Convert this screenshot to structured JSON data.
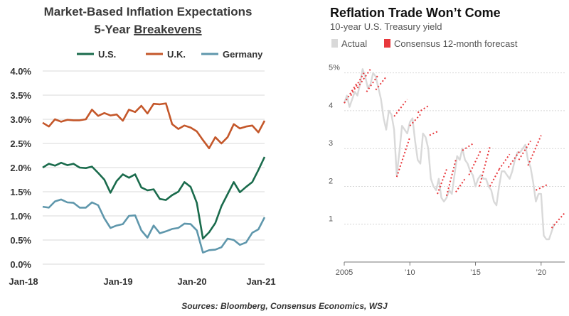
{
  "footer": {
    "source": "Sources: Bloomberg, Consensus Economics, WSJ"
  },
  "chart_data": [
    {
      "type": "line",
      "title": "Market-Based Inflation Expectations",
      "subtitle_prefix": "5-Year ",
      "subtitle_underlined": "Breakevens",
      "xlabel": "",
      "ylabel": "",
      "x_ticks": [
        "Jan-18",
        "Jan-19",
        "Jan-20",
        "Jan-21"
      ],
      "y_ticks": [
        "0.0%",
        "0.5%",
        "1.0%",
        "1.5%",
        "2.0%",
        "2.5%",
        "3.0%",
        "3.5%",
        "4.0%"
      ],
      "ylim": [
        0,
        4
      ],
      "xlim": [
        0,
        36
      ],
      "grid": true,
      "legend_position": "top",
      "series": [
        {
          "name": "U.S.",
          "color": "#1a6b4c",
          "values": [
            2.0,
            2.08,
            2.04,
            2.1,
            2.05,
            2.08,
            2.0,
            1.99,
            2.02,
            1.89,
            1.75,
            1.48,
            1.72,
            1.86,
            1.79,
            1.86,
            1.59,
            1.53,
            1.55,
            1.35,
            1.33,
            1.43,
            1.5,
            1.7,
            1.6,
            1.27,
            0.53,
            0.66,
            0.85,
            1.2,
            1.45,
            1.7,
            1.49,
            1.6,
            1.7,
            1.95,
            2.22
          ]
        },
        {
          "name": "U.K.",
          "color": "#c4572a",
          "values": [
            2.93,
            2.85,
            3.0,
            2.95,
            2.99,
            2.98,
            2.98,
            3.0,
            3.2,
            3.07,
            3.13,
            3.08,
            3.1,
            2.97,
            3.2,
            3.15,
            3.28,
            3.12,
            3.32,
            3.31,
            3.33,
            2.9,
            2.8,
            2.87,
            2.83,
            2.75,
            2.57,
            2.4,
            2.63,
            2.5,
            2.63,
            2.9,
            2.81,
            2.85,
            2.87,
            2.73,
            2.97
          ]
        },
        {
          "name": "Germany",
          "color": "#5f97ac",
          "values": [
            1.19,
            1.17,
            1.3,
            1.34,
            1.28,
            1.27,
            1.17,
            1.17,
            1.28,
            1.22,
            0.95,
            0.75,
            0.8,
            0.83,
            1.0,
            1.01,
            0.7,
            0.55,
            0.8,
            0.64,
            0.68,
            0.73,
            0.75,
            0.84,
            0.83,
            0.7,
            0.24,
            0.29,
            0.3,
            0.35,
            0.53,
            0.5,
            0.4,
            0.45,
            0.65,
            0.72,
            0.97
          ]
        }
      ]
    },
    {
      "type": "line",
      "title": "Reflation Trade Won’t Come",
      "subtitle": "10-year U.S. Treasury yield",
      "xlabel": "",
      "ylabel": "",
      "x_ticks": [
        "2005",
        "’10",
        "’15",
        "’20"
      ],
      "x_tick_values": [
        2005,
        2010,
        2015,
        2020
      ],
      "y_ticks": [
        "1",
        "2",
        "3",
        "4",
        "5%"
      ],
      "y_tick_values": [
        1,
        2,
        3,
        4,
        5
      ],
      "ylim": [
        0,
        5.2
      ],
      "xlim": [
        2005,
        2021.8
      ],
      "grid": true,
      "legend_position": "top-left",
      "series": [
        {
          "name": "Actual",
          "color": "#d9d9d9",
          "x": [
            2005,
            2005.2,
            2005.4,
            2005.6,
            2005.8,
            2006,
            2006.2,
            2006.4,
            2006.6,
            2006.8,
            2007,
            2007.2,
            2007.4,
            2007.6,
            2007.8,
            2008,
            2008.2,
            2008.4,
            2008.6,
            2008.8,
            2009,
            2009.2,
            2009.4,
            2009.6,
            2009.8,
            2010,
            2010.2,
            2010.4,
            2010.6,
            2010.8,
            2011,
            2011.2,
            2011.4,
            2011.6,
            2011.8,
            2012,
            2012.2,
            2012.4,
            2012.6,
            2012.8,
            2013,
            2013.2,
            2013.4,
            2013.6,
            2013.8,
            2014,
            2014.2,
            2014.4,
            2014.6,
            2014.8,
            2015,
            2015.2,
            2015.4,
            2015.6,
            2015.8,
            2016,
            2016.2,
            2016.4,
            2016.6,
            2016.8,
            2017,
            2017.2,
            2017.4,
            2017.6,
            2017.8,
            2018,
            2018.2,
            2018.4,
            2018.6,
            2018.8,
            2019,
            2019.2,
            2019.4,
            2019.6,
            2019.8,
            2020,
            2020.2,
            2020.4,
            2020.6,
            2020.8,
            2021
          ],
          "values": [
            4.2,
            4.4,
            4.1,
            4.3,
            4.5,
            4.4,
            4.7,
            5.1,
            4.9,
            4.6,
            4.7,
            5.0,
            4.9,
            4.6,
            4.3,
            3.8,
            3.5,
            4.0,
            3.9,
            3.5,
            2.3,
            2.9,
            3.6,
            3.5,
            3.4,
            3.7,
            3.8,
            3.2,
            2.7,
            2.6,
            3.4,
            3.3,
            3.0,
            2.2,
            2.0,
            1.9,
            2.2,
            1.7,
            1.6,
            1.7,
            1.9,
            1.8,
            2.3,
            2.8,
            2.7,
            3.0,
            2.7,
            2.6,
            2.4,
            2.3,
            2.0,
            2.2,
            2.3,
            2.2,
            2.2,
            2.0,
            1.9,
            1.6,
            1.5,
            2.0,
            2.4,
            2.4,
            2.3,
            2.2,
            2.4,
            2.7,
            2.9,
            2.9,
            3.0,
            3.1,
            2.7,
            2.5,
            2.1,
            1.6,
            1.8,
            1.8,
            0.7,
            0.6,
            0.6,
            0.8,
            1.0
          ]
        },
        {
          "name": "Consensus 12-month forecast",
          "color": "#e8383c",
          "segments": [
            {
              "x": [
                2005,
                2006
              ],
              "values": [
                4.2,
                4.75
              ]
            },
            {
              "x": [
                2005.5,
                2006.5
              ],
              "values": [
                4.4,
                5.0
              ]
            },
            {
              "x": [
                2006,
                2007
              ],
              "values": [
                4.6,
                5.1
              ]
            },
            {
              "x": [
                2006.7,
                2007.6
              ],
              "values": [
                4.5,
                4.95
              ]
            },
            {
              "x": [
                2007.4,
                2008.2
              ],
              "values": [
                4.55,
                4.9
              ]
            },
            {
              "x": [
                2008.8,
                2009.8
              ],
              "values": [
                3.85,
                4.3
              ]
            },
            {
              "x": [
                2009,
                2010
              ],
              "values": [
                2.25,
                3.3
              ]
            },
            {
              "x": [
                2010,
                2010.8
              ],
              "values": [
                3.6,
                3.9
              ]
            },
            {
              "x": [
                2010.6,
                2011.5
              ],
              "values": [
                3.95,
                4.15
              ]
            },
            {
              "x": [
                2011.5,
                2012.1
              ],
              "values": [
                3.35,
                3.45
              ]
            },
            {
              "x": [
                2012.1,
                2012.8
              ],
              "values": [
                1.8,
                2.45
              ]
            },
            {
              "x": [
                2012.8,
                2013.5
              ],
              "values": [
                1.75,
                2.7
              ]
            },
            {
              "x": [
                2013.5,
                2014.2
              ],
              "values": [
                1.85,
                2.2
              ]
            },
            {
              "x": [
                2014,
                2014.9
              ],
              "values": [
                2.95,
                3.15
              ]
            },
            {
              "x": [
                2014.5,
                2015.4
              ],
              "values": [
                2.3,
                2.95
              ]
            },
            {
              "x": [
                2015.3,
                2016.1
              ],
              "values": [
                2.0,
                3.05
              ]
            },
            {
              "x": [
                2016.1,
                2016.8
              ],
              "values": [
                2.0,
                2.45
              ]
            },
            {
              "x": [
                2016.8,
                2017.6
              ],
              "values": [
                2.45,
                2.85
              ]
            },
            {
              "x": [
                2017.5,
                2018.4
              ],
              "values": [
                2.5,
                2.95
              ]
            },
            {
              "x": [
                2018.3,
                2019.2
              ],
              "values": [
                2.7,
                3.2
              ]
            },
            {
              "x": [
                2019,
                2020
              ],
              "values": [
                2.55,
                3.35
              ]
            },
            {
              "x": [
                2019.6,
                2020.5
              ],
              "values": [
                1.9,
                2.05
              ]
            },
            {
              "x": [
                2020.8,
                2021.8
              ],
              "values": [
                0.9,
                1.3
              ]
            }
          ]
        }
      ]
    }
  ]
}
